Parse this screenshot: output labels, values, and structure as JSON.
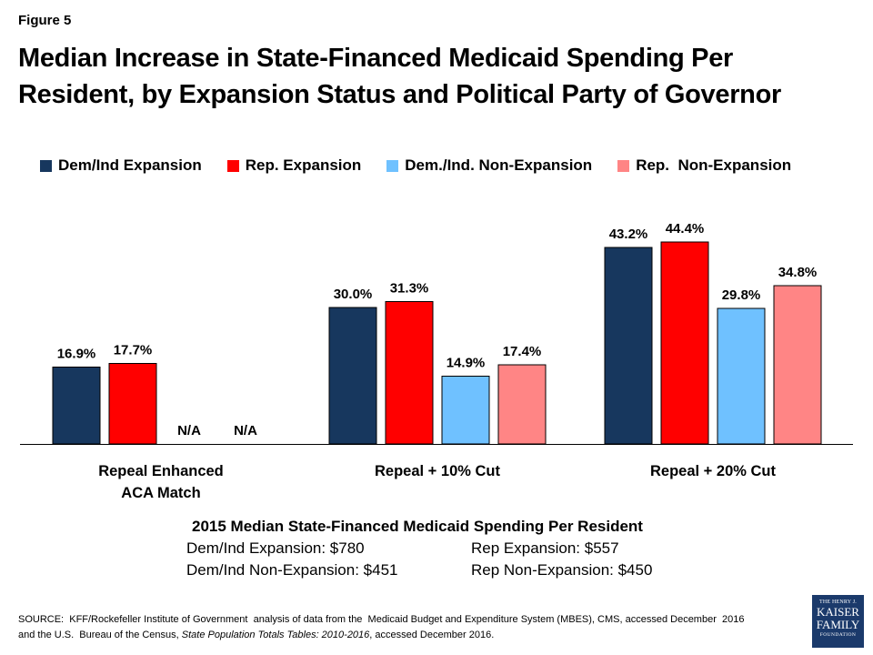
{
  "figure_label": "Figure 5",
  "title": "Median Increase in State-Financed Medicaid Spending Per Resident, by Expansion Status and Political Party of Governor",
  "colors": {
    "dem_expansion": "#17375e",
    "rep_expansion": "#ff0000",
    "dem_non_expansion": "#6fc1ff",
    "rep_non_expansion": "#ff8585"
  },
  "chart_data": {
    "type": "bar",
    "categories": [
      "Repeal Enhanced ACA Match",
      "Repeal + 10% Cut",
      "Repeal + 20% Cut"
    ],
    "category_lines": [
      [
        "Repeal Enhanced",
        "ACA Match"
      ],
      [
        "Repeal + 10% Cut"
      ],
      [
        "Repeal + 20% Cut"
      ]
    ],
    "series": [
      {
        "name": "Dem/Ind Expansion",
        "values": [
          16.9,
          30.0,
          43.2
        ],
        "labels": [
          "16.9%",
          "30.0%",
          "43.2%"
        ],
        "color": "#17375e"
      },
      {
        "name": "Rep. Expansion",
        "values": [
          17.7,
          31.3,
          44.4
        ],
        "labels": [
          "17.7%",
          "31.3%",
          "44.4%"
        ],
        "color": "#ff0000"
      },
      {
        "name": "Dem./Ind. Non-Expansion",
        "values": [
          null,
          14.9,
          29.8
        ],
        "labels": [
          "N/A",
          "14.9%",
          "29.8%"
        ],
        "color": "#6fc1ff"
      },
      {
        "name": "Rep.  Non-Expansion",
        "values": [
          null,
          17.4,
          34.8
        ],
        "labels": [
          "N/A",
          "17.4%",
          "34.8%"
        ],
        "color": "#ff8585"
      }
    ],
    "ylim": [
      0,
      50
    ],
    "grid": false,
    "legend": "top"
  },
  "summary": {
    "title": "2015 Median State-Financed Medicaid Spending Per Resident",
    "rows": [
      [
        "Dem/Ind Expansion: $780",
        "Rep Expansion: $557"
      ],
      [
        "Dem/Ind Non-Expansion: $451",
        "Rep Non-Expansion: $450"
      ]
    ]
  },
  "source": {
    "line1": "SOURCE:  KFF/Rockefeller Institute of Government  analysis of data from the  Medicaid Budget and Expenditure System (MBES), CMS, accessed December  2016",
    "line2_prefix": "and the U.S.  Bureau of the Census, ",
    "line2_italic": "State Population Totals Tables: 2010-2016",
    "line2_suffix": ", accessed December 2016."
  },
  "logo": {
    "line1": "THE HENRY J.",
    "line2": "KAISER",
    "line3": "FAMILY",
    "line4": "FOUNDATION"
  }
}
